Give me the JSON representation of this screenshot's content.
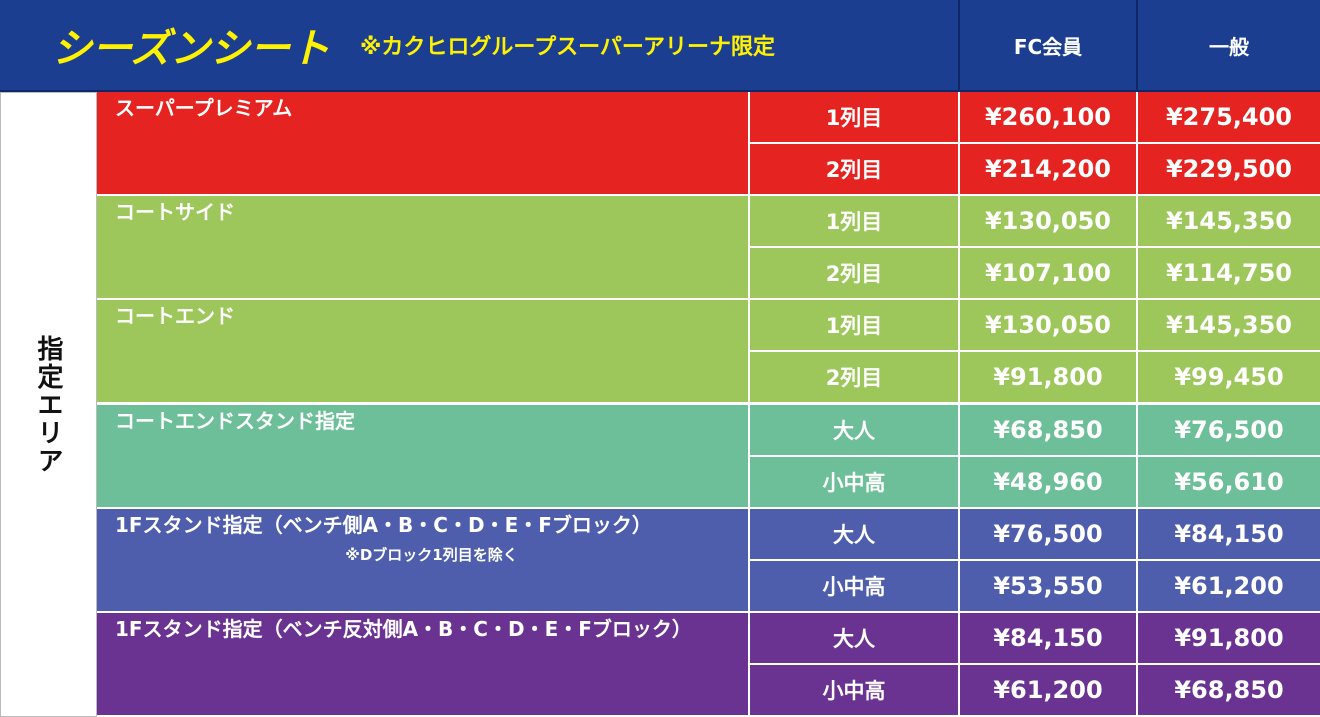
{
  "header": {
    "title": "シーズンシート",
    "note": "※カクヒログループスーパーアリーナ限定",
    "columns": [
      "FC会員",
      "一般"
    ]
  },
  "area": "指定エリア",
  "groups": [
    {
      "name": "スーパープレミアム",
      "rows": [
        {
          "label": "1列目",
          "fc": "¥260,100",
          "general": "¥275,400"
        },
        {
          "label": "2列目",
          "fc": "¥214,200",
          "general": "¥229,500"
        }
      ]
    },
    {
      "name": "コートサイド",
      "rows": [
        {
          "label": "1列目",
          "fc": "¥130,050",
          "general": "¥145,350"
        },
        {
          "label": "2列目",
          "fc": "¥107,100",
          "general": "¥114,750"
        }
      ]
    },
    {
      "name": "コートエンド",
      "rows": [
        {
          "label": "1列目",
          "fc": "¥130,050",
          "general": "¥145,350"
        },
        {
          "label": "2列目",
          "fc": "¥91,800",
          "general": "¥99,450"
        }
      ]
    },
    {
      "name": "コートエンドスタンド指定",
      "rows": [
        {
          "label": "大人",
          "fc": "¥68,850",
          "general": "¥76,500"
        },
        {
          "label": "小中高",
          "fc": "¥48,960",
          "general": "¥56,610"
        }
      ]
    },
    {
      "name": "1Fスタンド指定（ベンチ側A・B・C・D・E・Fブロック）",
      "note": "※Dブロック1列目を除く",
      "rows": [
        {
          "label": "大人",
          "fc": "¥76,500",
          "general": "¥84,150"
        },
        {
          "label": "小中高",
          "fc": "¥53,550",
          "general": "¥61,200"
        }
      ]
    },
    {
      "name": "1Fスタンド指定（ベンチ反対側A・B・C・D・E・Fブロック）",
      "rows": [
        {
          "label": "大人",
          "fc": "¥84,150",
          "general": "¥91,800"
        },
        {
          "label": "小中高",
          "fc": "¥61,200",
          "general": "¥68,850"
        }
      ]
    }
  ]
}
